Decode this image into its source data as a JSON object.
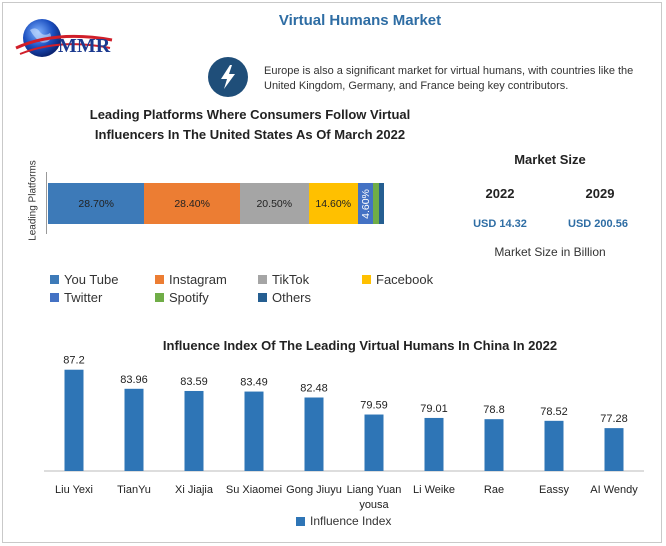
{
  "header": {
    "logo_text": "MMR",
    "title": "Virtual Humans Market",
    "note_icon": "lightning-icon",
    "note": "Europe is also a significant market for virtual humans, with countries like the United Kingdom, Germany, and France being key contributors."
  },
  "market_size": {
    "title": "Market Size",
    "year_a": "2022",
    "year_b": "2029",
    "value_a": "USD 14.32",
    "value_b": "USD 200.56",
    "unit": "Market Size in Billion"
  },
  "chart_data": [
    {
      "type": "bar",
      "orientation": "horizontal-stacked",
      "title": "Leading Platforms Where Consumers Follow Virtual Influencers In The United States As Of March 2022",
      "ylabel": "Leading Platforms",
      "series": [
        {
          "name": "You Tube",
          "value": 28.7,
          "label": "28.70%",
          "color": "#3d7ab8"
        },
        {
          "name": "Instagram",
          "value": 28.4,
          "label": "28.40%",
          "color": "#ec7d33"
        },
        {
          "name": "TikTok",
          "value": 20.5,
          "label": "20.50%",
          "color": "#a5a5a5"
        },
        {
          "name": "Facebook",
          "value": 14.6,
          "label": "14.60%",
          "color": "#ffc000"
        },
        {
          "name": "Twitter",
          "value": 4.6,
          "label": "4.60%",
          "color": "#4472c4"
        },
        {
          "name": "Spotify",
          "value": 1.6,
          "label": "",
          "color": "#70ad47"
        },
        {
          "name": "Others",
          "value": 1.6,
          "label": "",
          "color": "#255e91"
        }
      ]
    },
    {
      "type": "bar",
      "title": "Influence Index Of The Leading Virtual Humans In China In 2022",
      "categories": [
        "Liu Yexi",
        "TianYu",
        "Xi Jiajia",
        "Su Xiaomei",
        "Gong Jiuyu",
        "Liang Yuan yousa",
        "Li Weike",
        "Rae",
        "Eassy",
        "AI Wendy"
      ],
      "series": [
        {
          "name": "Influence Index",
          "color": "#2e75b6",
          "values": [
            87.2,
            83.96,
            83.59,
            83.49,
            82.48,
            79.59,
            79.01,
            78.8,
            78.52,
            77.28
          ],
          "labels": [
            "87.2",
            "83.96",
            "83.59",
            "83.49",
            "82.48",
            "79.59",
            "79.01",
            "78.8",
            "78.52",
            "77.28"
          ]
        }
      ],
      "ylim": [
        70,
        88
      ]
    }
  ]
}
